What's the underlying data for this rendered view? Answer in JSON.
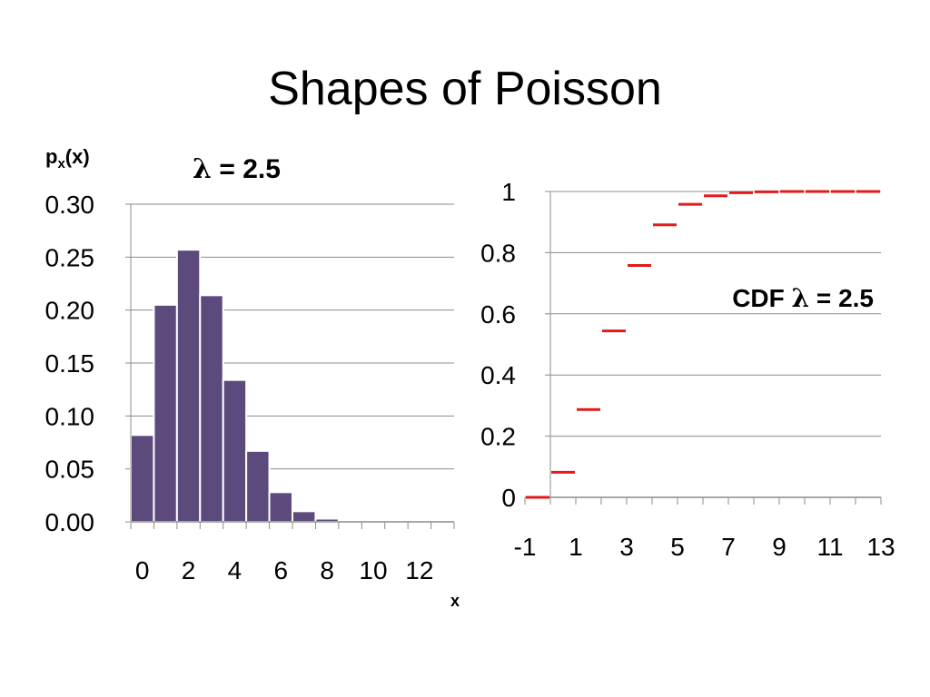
{
  "slide": {
    "title": "Shapes of Poisson"
  },
  "chart_data": [
    {
      "type": "bar",
      "title_symbol": "λ",
      "title_text": " = 2.5",
      "ylabel_main": "p",
      "ylabel_sub": "x",
      "ylabel_rest": "(x)",
      "xlabel": "x",
      "categories": [
        0,
        1,
        2,
        3,
        4,
        5,
        6,
        7,
        8,
        9,
        10,
        11,
        12,
        13
      ],
      "values": [
        0.082,
        0.205,
        0.257,
        0.214,
        0.134,
        0.067,
        0.028,
        0.01,
        0.003,
        0.001,
        0.0002,
        0.0,
        0.0,
        0.0
      ],
      "ylim": [
        0,
        0.3
      ],
      "yticks": [
        "0.00",
        "0.05",
        "0.10",
        "0.15",
        "0.20",
        "0.25",
        "0.30"
      ],
      "xtick_labels": [
        "0",
        "2",
        "4",
        "6",
        "8",
        "10",
        "12"
      ],
      "bar_color": "#5b4a7b",
      "grid": true
    },
    {
      "type": "line",
      "style": "step-segments",
      "title_text_before": "CDF ",
      "title_symbol": "λ",
      "title_text_after": " = 2.5",
      "x": [
        -1,
        0,
        1,
        2,
        3,
        4,
        5,
        6,
        7,
        8,
        9,
        10,
        11,
        12
      ],
      "values": [
        0.0,
        0.082,
        0.287,
        0.544,
        0.758,
        0.891,
        0.958,
        0.986,
        0.996,
        0.999,
        1.0,
        1.0,
        1.0,
        1.0
      ],
      "xlim": [
        -1,
        13
      ],
      "ylim": [
        0,
        1
      ],
      "yticks": [
        "0",
        "0.2",
        "0.4",
        "0.6",
        "0.8",
        "1"
      ],
      "xtick_labels": [
        "-1",
        "1",
        "3",
        "5",
        "7",
        "9",
        "11",
        "13"
      ],
      "line_color": "#e31a1c",
      "grid": true
    }
  ]
}
